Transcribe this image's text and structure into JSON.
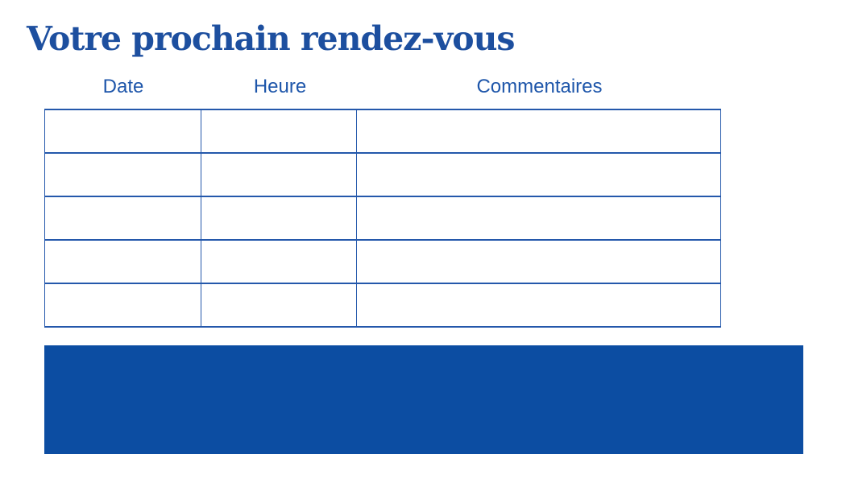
{
  "page": {
    "title": "Votre prochain rendez-vous"
  },
  "table": {
    "headers": [
      "Date",
      "Heure",
      "Commentaires"
    ],
    "row_count": 5,
    "rows": [
      [
        "",
        "",
        ""
      ],
      [
        "",
        "",
        ""
      ],
      [
        "",
        "",
        ""
      ],
      [
        "",
        "",
        ""
      ],
      [
        "",
        "",
        ""
      ]
    ]
  },
  "banner": {
    "text": ""
  },
  "colors": {
    "title_text": "#1d4f9f",
    "header_text": "#1e56aa",
    "table_border": "#2458ab",
    "banner_background": "#0c4da2",
    "page_background": "#ffffff"
  }
}
